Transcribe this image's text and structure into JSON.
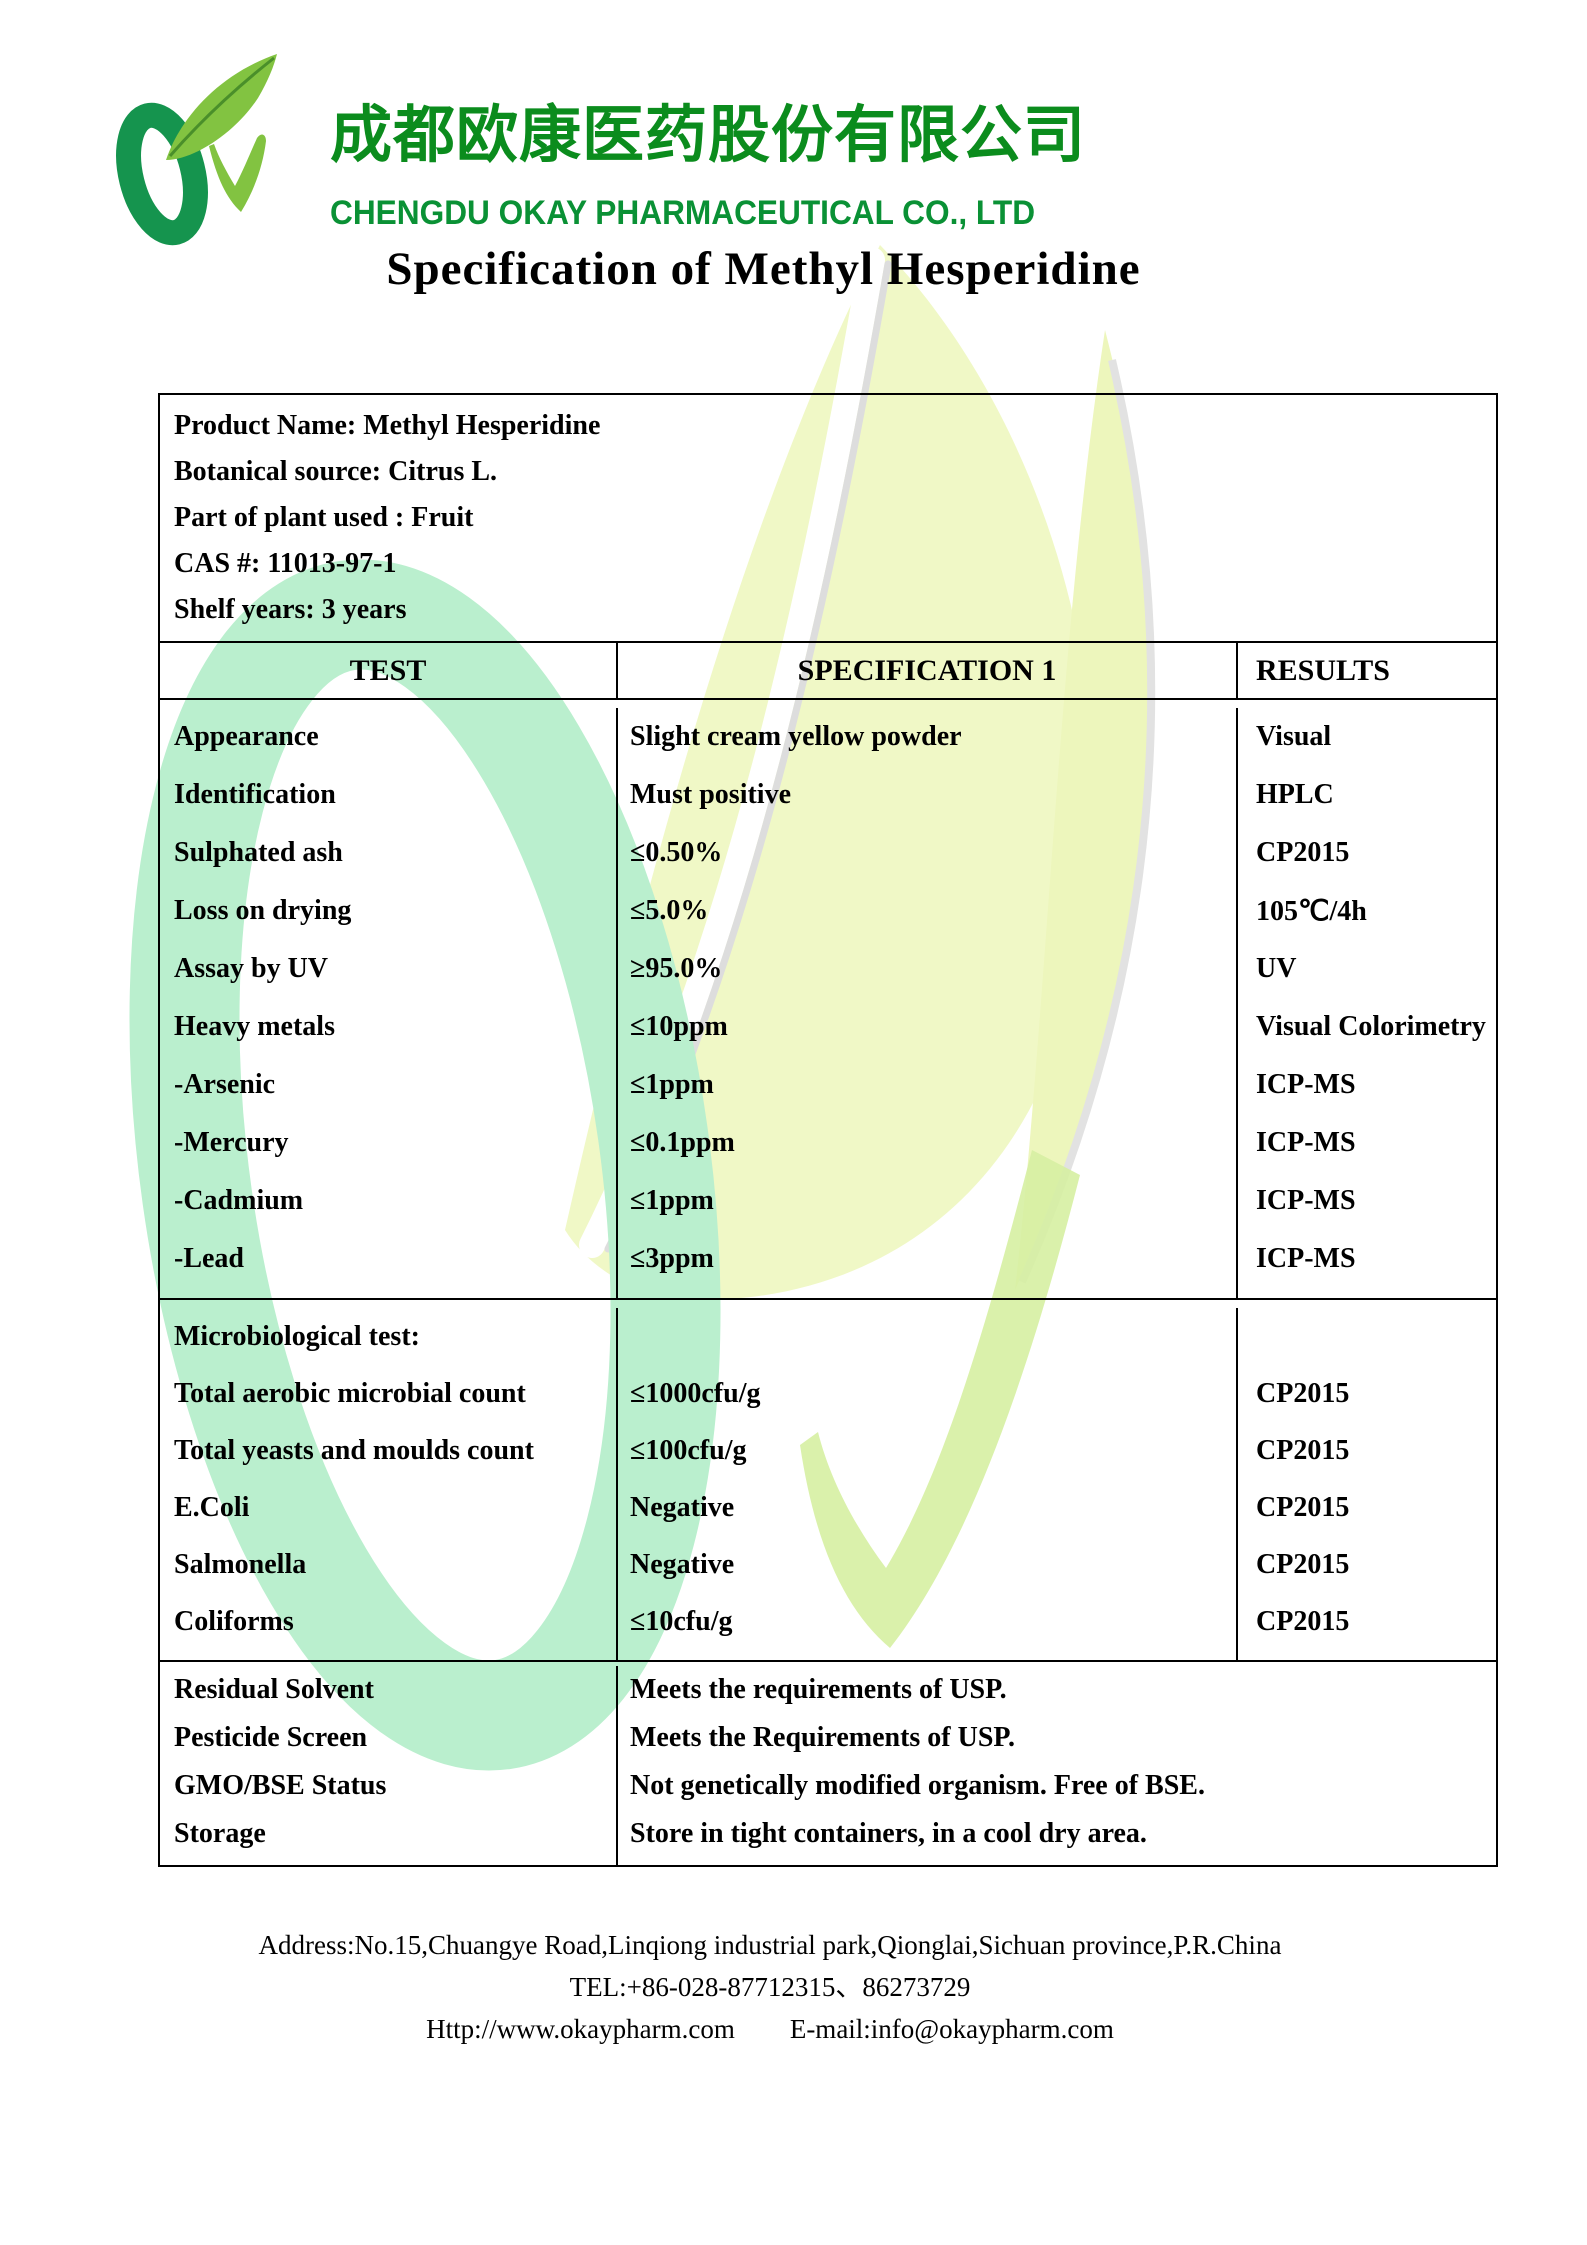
{
  "header": {
    "company_name_zh": "成都欧康医药股份有限公司",
    "company_name_en": "CHENGDU OKAY PHARMACEUTICAL CO., LTD"
  },
  "title": "Specification of Methyl Hesperidine",
  "product_info": {
    "lines": [
      "Product Name: Methyl Hesperidine",
      "Botanical source: Citrus L.",
      "Part of plant used : Fruit",
      "CAS #: 11013-97-1",
      "Shelf years: 3 years"
    ]
  },
  "table": {
    "headers": [
      "TEST",
      "SPECIFICATION 1",
      "RESULTS"
    ],
    "sections": [
      {
        "name": "physical-chemical",
        "rows": [
          [
            "Appearance",
            "Slight cream yellow powder",
            "Visual"
          ],
          [
            "Identification",
            "Must positive",
            "HPLC"
          ],
          [
            "Sulphated ash",
            "≤0.50%",
            "CP2015"
          ],
          [
            "Loss on drying",
            "≤5.0%",
            "105℃/4h"
          ],
          [
            "Assay by UV",
            "≥95.0%",
            "UV"
          ],
          [
            "Heavy metals",
            "≤10ppm",
            "Visual Colorimetry"
          ],
          [
            "-Arsenic",
            "≤1ppm",
            "ICP-MS"
          ],
          [
            "-Mercury",
            "≤0.1ppm",
            "ICP-MS"
          ],
          [
            "-Cadmium",
            "≤1ppm",
            "ICP-MS"
          ],
          [
            "-Lead",
            "≤3ppm",
            "ICP-MS"
          ]
        ]
      },
      {
        "name": "microbiological",
        "rows": [
          [
            "Microbiological test:",
            "",
            ""
          ],
          [
            "Total aerobic microbial count",
            "≤1000cfu/g",
            "CP2015"
          ],
          [
            "Total yeasts and moulds count",
            "≤100cfu/g",
            "CP2015"
          ],
          [
            "E.Coli",
            "Negative",
            "CP2015"
          ],
          [
            "Salmonella",
            "Negative",
            "CP2015"
          ],
          [
            "Coliforms",
            "≤10cfu/g",
            "CP2015"
          ]
        ]
      },
      {
        "name": "other-requirements",
        "rows": [
          [
            "Residual Solvent",
            "Meets the requirements of USP."
          ],
          [
            "Pesticide Screen",
            "Meets the Requirements of USP."
          ],
          [
            "GMO/BSE Status",
            "Not genetically modified organism. Free of BSE."
          ],
          [
            "Storage",
            "Store in tight containers, in a cool dry area."
          ]
        ]
      }
    ]
  },
  "footer": {
    "address": "Address:No.15,Chuangye Road,Linqiong industrial park,Qionglai,Sichuan province,P.R.China",
    "tel": "TEL:+86-028-87712315、86273729",
    "website": "Http://www.okaypharm.com",
    "email": "E-mail:info@okaypharm.com"
  },
  "colors": {
    "logo_green_dark": "#15944e",
    "logo_green_leaf": "#82c341",
    "company_text_green_zh": "#0b8c1d",
    "company_text_green_en": "#0a9135",
    "watermark_mint": "#baefce",
    "watermark_leaf_yellow": "#f0f8c6",
    "watermark_lime": "#d6f0a2"
  }
}
